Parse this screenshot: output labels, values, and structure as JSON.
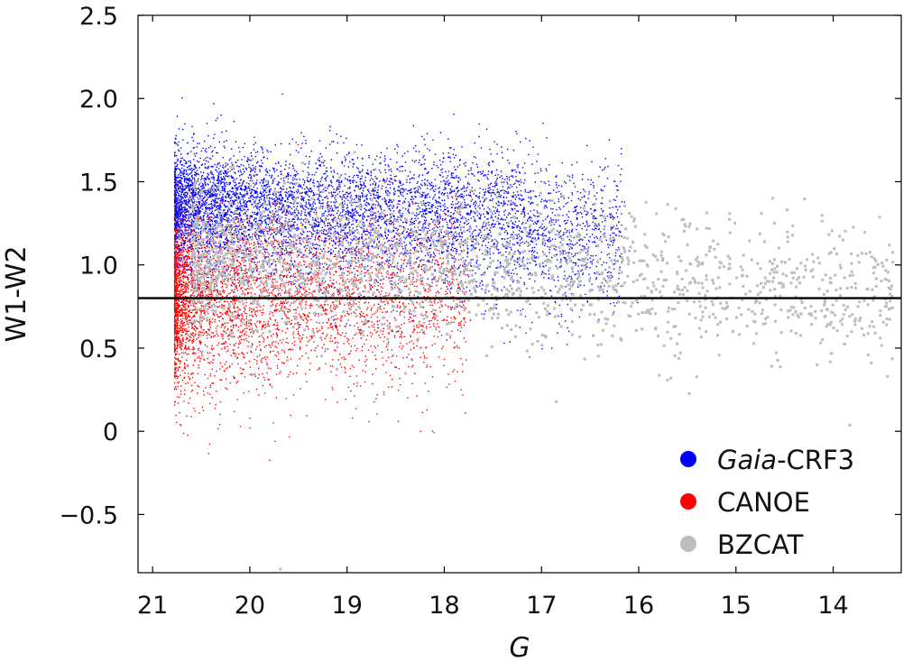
{
  "chart_data": {
    "type": "scatter",
    "title": "",
    "xlabel": "G",
    "ylabel": "W1-W2",
    "xlim": [
      21.15,
      13.3
    ],
    "ylim": [
      -0.85,
      2.5
    ],
    "x_inverted": true,
    "x_ticks": [
      21,
      20,
      19,
      18,
      17,
      16,
      15,
      14
    ],
    "y_ticks": [
      2.5,
      2.0,
      1.5,
      1.0,
      0.5,
      0,
      -0.5
    ],
    "x_tick_labels": [
      "21",
      "20",
      "19",
      "18",
      "17",
      "16",
      "15",
      "14"
    ],
    "y_tick_labels": [
      "2.5",
      "2.0",
      "1.5",
      "1.0",
      "0.5",
      "0",
      "−0.5"
    ],
    "hline": {
      "y": 0.8,
      "color": "#000000"
    },
    "legend_position": "bottom-right",
    "grid": false,
    "series": [
      {
        "name": "Gaia-CRF3",
        "name_italic": "Gaia",
        "name_rest": "-CRF3",
        "color": "#0000ff",
        "distribution": "dense cloud, G 21.0–16.5, W1-W2 mostly 0.6–1.8, centered ~1.3",
        "sample": [
          [
            20.6,
            1.3
          ],
          [
            20.2,
            1.5
          ],
          [
            19.8,
            1.4
          ],
          [
            19.4,
            1.35
          ],
          [
            19.0,
            1.3
          ],
          [
            18.6,
            1.35
          ],
          [
            18.2,
            1.3
          ],
          [
            17.8,
            1.25
          ],
          [
            17.4,
            1.2
          ],
          [
            17.0,
            1.15
          ],
          [
            16.6,
            1.1
          ],
          [
            20.4,
            1.6
          ],
          [
            19.5,
            1.55
          ],
          [
            18.5,
            1.45
          ],
          [
            20.0,
            1.8
          ],
          [
            19.9,
            2.05
          ]
        ]
      },
      {
        "name": "CANOE",
        "color": "#ff0000",
        "distribution": "dense cloud, G 21.0–18.0, W1-W2 mostly 0.3–1.5, centered ~0.8",
        "sample": [
          [
            20.7,
            0.8
          ],
          [
            20.4,
            0.7
          ],
          [
            20.1,
            0.9
          ],
          [
            19.8,
            0.75
          ],
          [
            19.5,
            0.8
          ],
          [
            19.2,
            0.85
          ],
          [
            18.9,
            0.7
          ],
          [
            18.5,
            0.6
          ],
          [
            20.5,
            0.3
          ],
          [
            20.0,
            0.1
          ],
          [
            19.6,
            0.4
          ]
        ]
      },
      {
        "name": "BZCAT",
        "color": "#bdbdbd",
        "distribution": "sparser squares, G 21.0–13.5, W1-W2 mostly 0.3–1.6, centered ~1.0",
        "sample": [
          [
            20.3,
            1.1
          ],
          [
            19.6,
            1.0
          ],
          [
            18.9,
            1.2
          ],
          [
            18.2,
            1.0
          ],
          [
            17.5,
            0.9
          ],
          [
            16.8,
            0.8
          ],
          [
            16.1,
            0.7
          ],
          [
            15.4,
            0.9
          ],
          [
            14.7,
            0.8
          ],
          [
            14.1,
            0.8
          ],
          [
            13.5,
            1.0
          ],
          [
            15.2,
            0.65
          ],
          [
            14.6,
            0.48
          ],
          [
            19.7,
            -0.82
          ]
        ]
      }
    ]
  }
}
